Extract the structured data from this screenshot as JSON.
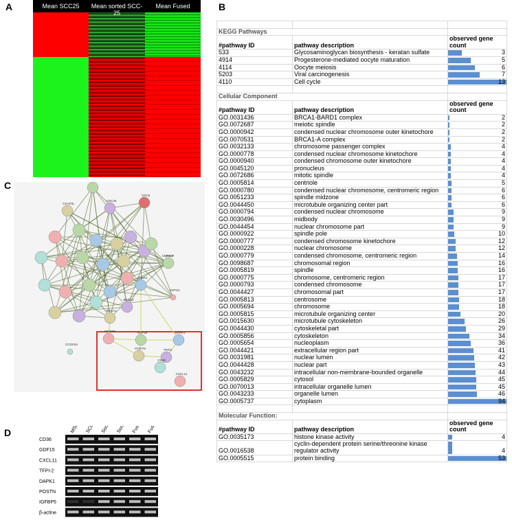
{
  "panels": {
    "a": "A",
    "b": "B",
    "c": "C",
    "d": "D"
  },
  "heatmap": {
    "columns": [
      "Mean SCC25",
      "Mean sorted SCC-25",
      "Mean Fused"
    ]
  },
  "network": {
    "nodes": [
      "CENPV",
      "CDC6",
      "CKAP2L",
      "CDC45",
      "CEP128",
      "CNTLN",
      "CDC7",
      "CHEK1",
      "BRCA1",
      "BRCA2",
      "CCDC64",
      "IGFBP5",
      "GDF15",
      "DAPK1",
      "POSTN",
      "TFPI2",
      "CD36",
      "CXCL11"
    ]
  },
  "gel": {
    "lanes": [
      "MSC",
      "SCC-25",
      "Sorted SCC-25-1",
      "Sorted SCC-25-2",
      "Fused-1",
      "Fused-2"
    ],
    "genes": [
      "CD36",
      "GDF15",
      "CXCL11",
      "TFPI-2",
      "DAPK1",
      "POSTN",
      "IGFBP5",
      "β-actine"
    ]
  },
  "table": {
    "sections": [
      {
        "title": "KEGG Pathways",
        "headers": [
          "#pathway ID",
          "pathway description",
          "observed gene count"
        ],
        "rows": [
          [
            "533",
            "Glycosaminoglycan biosynthesis - keratan sulfate",
            3
          ],
          [
            "4914",
            "Progesterone-mediated oocyte maturation",
            5
          ],
          [
            "4114",
            "Oocyte meiosis",
            6
          ],
          [
            "5203",
            "Viral carcinogenesis",
            7
          ],
          [
            "4110",
            "Cell cycle",
            13
          ]
        ]
      },
      {
        "title": "Cellular Component",
        "headers": [
          "#pathway ID",
          "pathway description",
          "observed gene count"
        ],
        "rows": [
          [
            "GO.0031436",
            "BRCA1-BARD1 complex",
            2
          ],
          [
            "GO.0072687",
            "meiotic spindle",
            2
          ],
          [
            "GO.0000942",
            "condensed nuclear chromosome outer kinetochore",
            2
          ],
          [
            "GO.0070531",
            "BRCA1-A complex",
            2
          ],
          [
            "GO.0032133",
            "chromosome passenger complex",
            4
          ],
          [
            "GO.0000778",
            "condensed nuclear chromosome kinetochore",
            4
          ],
          [
            "GO.0000940",
            "condensed chromosome outer kinetochore",
            4
          ],
          [
            "GO.0045120",
            "pronucleus",
            4
          ],
          [
            "GO.0072686",
            "mitotic spindle",
            4
          ],
          [
            "GO.0005814",
            "centriole",
            5
          ],
          [
            "GO.0000780",
            "condensed nuclear chromosome, centromeric region",
            6
          ],
          [
            "GO.0051233",
            "spindle midzone",
            6
          ],
          [
            "GO.0044450",
            "microtubule organizing center part",
            6
          ],
          [
            "GO.0000794",
            "condensed nuclear chromosome",
            9
          ],
          [
            "GO.0030496",
            "midbody",
            9
          ],
          [
            "GO.0044454",
            "nuclear chromosome part",
            9
          ],
          [
            "GO.0000922",
            "spindle pole",
            10
          ],
          [
            "GO.0000777",
            "condensed chromosome kinetochore",
            12
          ],
          [
            "GO.0000228",
            "nuclear chromosome",
            12
          ],
          [
            "GO.0000779",
            "condensed chromosome, centromeric region",
            14
          ],
          [
            "GO.0098687",
            "chromosomal region",
            16
          ],
          [
            "GO.0005819",
            "spindle",
            16
          ],
          [
            "GO.0000775",
            "chromosome, centromeric region",
            17
          ],
          [
            "GO.0000793",
            "condensed chromosome",
            17
          ],
          [
            "GO.0044427",
            "chromosomal part",
            17
          ],
          [
            "GO.0005813",
            "centrosome",
            18
          ],
          [
            "GO.0005694",
            "chromosome",
            18
          ],
          [
            "GO.0005815",
            "microtubule organizing center",
            20
          ],
          [
            "GO.0015630",
            "microtubule cytoskeleton",
            26
          ],
          [
            "GO.0044430",
            "cytoskeletal part",
            29
          ],
          [
            "GO.0005856",
            "cytoskeleton",
            34
          ],
          [
            "GO.0005654",
            "nucleoplasm",
            36
          ],
          [
            "GO.0044421",
            "extracellular region part",
            41
          ],
          [
            "GO.0031981",
            "nuclear lumen",
            42
          ],
          [
            "GO.0044428",
            "nuclear part",
            43
          ],
          [
            "GO.0043232",
            "intracellular non-membrane-bounded organelle",
            44
          ],
          [
            "GO.0005829",
            "cytosol",
            45
          ],
          [
            "GO.0070013",
            "intracellular organelle lumen",
            45
          ],
          [
            "GO.0043233",
            "organelle lumen",
            46
          ],
          [
            "GO.0005737",
            "cytoplasm",
            94
          ]
        ]
      },
      {
        "title": "Molecular Function:",
        "headers": [
          "#pathway ID",
          "pathway description",
          "observed gene count"
        ],
        "rows": [
          [
            "GO.0035173",
            "histone kinase activity",
            4
          ],
          [
            "GO.0016538",
            "cyclin-dependent protein serine/threonine kinase regulator activity",
            4
          ],
          [
            "GO.0005515",
            "protein binding",
            53
          ]
        ]
      }
    ]
  }
}
